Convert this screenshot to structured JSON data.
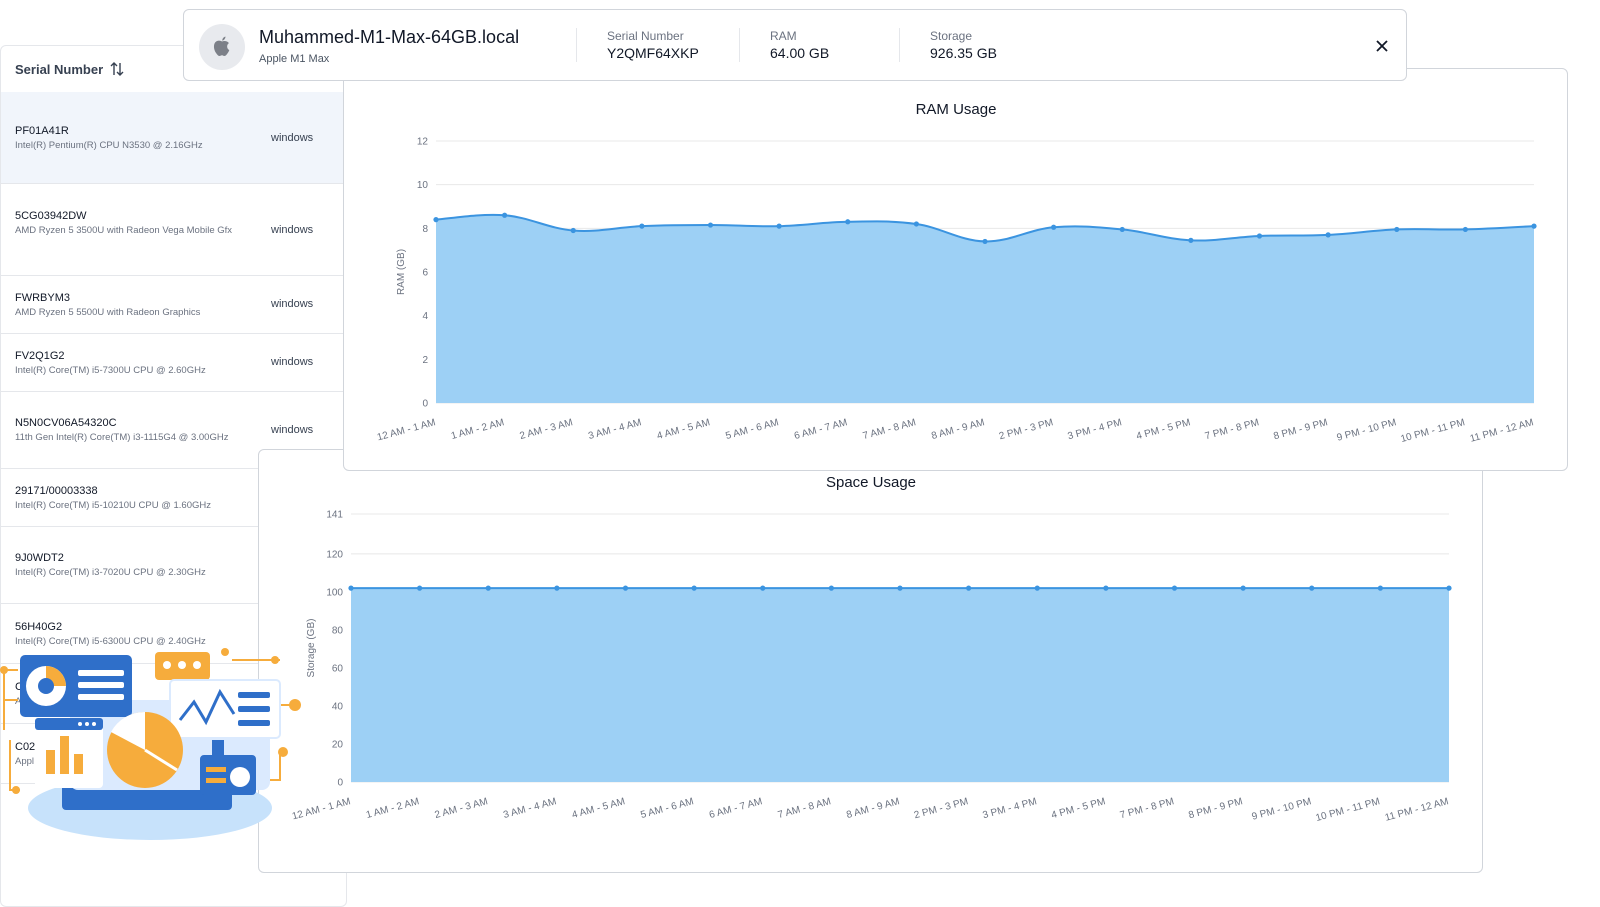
{
  "device": {
    "name": "Muhammed-M1-Max-64GB.local",
    "model": "Apple M1 Max",
    "icon": "apple-logo-icon",
    "specs": [
      {
        "label": "Serial Number",
        "value": "Y2QMF64XKP"
      },
      {
        "label": "RAM",
        "value": "64.00 GB"
      },
      {
        "label": "Storage",
        "value": "926.35 GB"
      }
    ]
  },
  "list": {
    "header": "Serial Number",
    "rows": [
      {
        "serial": "PF01A41R",
        "cpu": "Intel(R) Pentium(R) CPU N3530 @ 2.16GHz",
        "os": "windows"
      },
      {
        "serial": "5CG03942DW",
        "cpu": "AMD Ryzen 5 3500U with Radeon Vega Mobile Gfx",
        "os": "windows"
      },
      {
        "serial": "FWRBYM3",
        "cpu": "AMD Ryzen 5 5500U with Radeon Graphics",
        "os": "windows"
      },
      {
        "serial": "FV2Q1G2",
        "cpu": "Intel(R) Core(TM) i5-7300U CPU @ 2.60GHz",
        "os": "windows"
      },
      {
        "serial": "N5N0CV06A54320C",
        "cpu": "11th Gen Intel(R) Core(TM) i3-1115G4 @ 3.00GHz",
        "os": "windows"
      },
      {
        "serial": "29171/00003338",
        "cpu": "Intel(R) Core(TM) i5-10210U CPU @ 1.60GHz",
        "os": ""
      },
      {
        "serial": "9J0WDT2",
        "cpu": "Intel(R) Core(TM) i3-7020U CPU @ 2.30GHz",
        "os": ""
      },
      {
        "serial": "56H40G2",
        "cpu": "Intel(R) Core(TM) i5-6300U CPU @ 2.40GHz",
        "os": ""
      },
      {
        "serial": "C",
        "cpu": "A",
        "os": ""
      },
      {
        "serial": "C02",
        "cpu": "Appl",
        "os": ""
      }
    ]
  },
  "chart_data": [
    {
      "type": "area",
      "title": "RAM Usage",
      "xlabel": "",
      "ylabel": "RAM (GB)",
      "ylim": [
        0,
        12
      ],
      "yticks": [
        0,
        2,
        4,
        6,
        8,
        10,
        12
      ],
      "grid": true,
      "categories": [
        "12 AM - 1 AM",
        "1 AM - 2 AM",
        "2 AM - 3 AM",
        "3 AM - 4 AM",
        "4 AM - 5 AM",
        "5 AM - 6 AM",
        "6 AM - 7 AM",
        "7 AM - 8 AM",
        "8 AM - 9 AM",
        "2 PM - 3 PM",
        "3 PM - 4 PM",
        "4 PM - 5 PM",
        "7 PM - 8 PM",
        "8 PM - 9 PM",
        "9 PM - 10 PM",
        "10 PM - 11 PM",
        "11 PM - 12 AM"
      ],
      "values": [
        8.4,
        8.6,
        7.9,
        8.1,
        8.15,
        8.1,
        8.3,
        8.2,
        7.4,
        8.05,
        7.95,
        7.45,
        7.65,
        7.7,
        7.95,
        7.95,
        8.1
      ]
    },
    {
      "type": "area",
      "title": "Space Usage",
      "xlabel": "",
      "ylabel": "Storage (GB)",
      "ylim": [
        0,
        141
      ],
      "yticks": [
        0,
        20,
        40,
        60,
        80,
        100,
        120,
        141
      ],
      "grid": true,
      "categories": [
        "12 AM - 1 AM",
        "1 AM - 2 AM",
        "2 AM - 3 AM",
        "3 AM - 4 AM",
        "4 AM - 5 AM",
        "5 AM - 6 AM",
        "6 AM - 7 AM",
        "7 AM - 8 AM",
        "8 AM - 9 AM",
        "2 PM - 3 PM",
        "3 PM - 4 PM",
        "4 PM - 5 PM",
        "7 PM - 8 PM",
        "8 PM - 9 PM",
        "9 PM - 10 PM",
        "10 PM - 11 PM",
        "11 PM - 12 AM"
      ],
      "values": [
        102,
        102,
        102,
        102,
        102,
        102,
        102,
        102,
        102,
        102,
        102,
        102,
        102,
        102,
        102,
        102,
        102
      ]
    }
  ],
  "colors": {
    "line": "#3b94e0",
    "fill": "#9dd0f5",
    "grid": "#e8e8e8",
    "illustration_blue": "#2f6fc9",
    "illustration_orange": "#f6ac3c"
  }
}
